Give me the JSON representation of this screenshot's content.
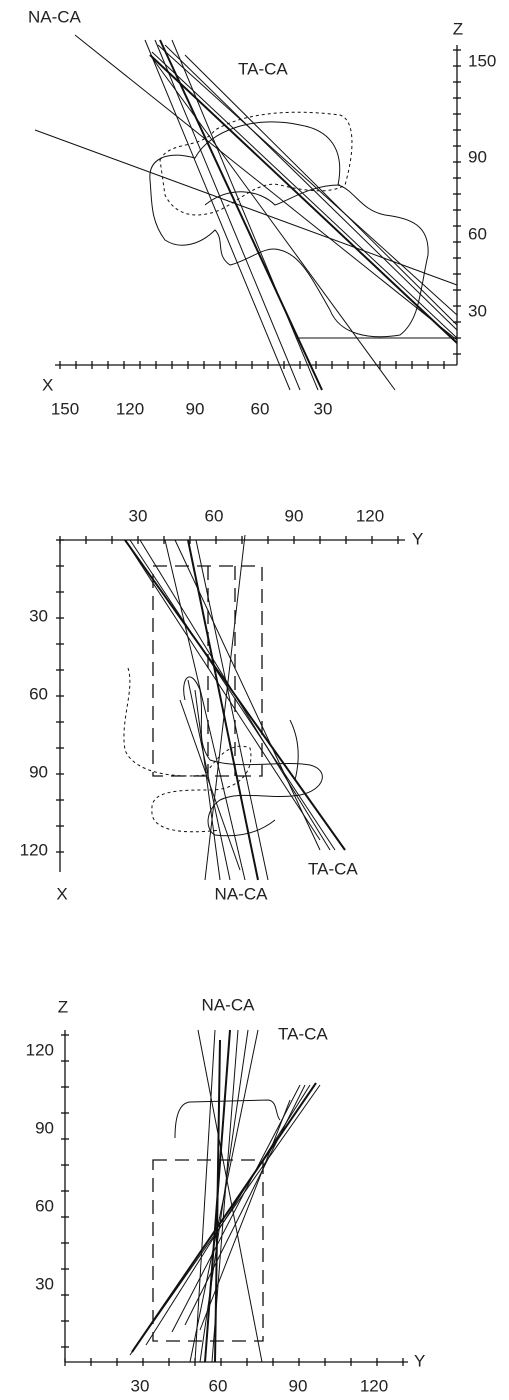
{
  "panels": [
    {
      "axis_labels": [
        "X",
        "Z"
      ],
      "x_ticks": [
        "150",
        "120",
        "90",
        "60",
        "30"
      ],
      "y_ticks": [
        "150",
        "90",
        "60",
        "30"
      ],
      "line_labels": [
        "NA-CA",
        "TA-CA"
      ]
    },
    {
      "axis_labels": [
        "Y",
        "X"
      ],
      "x_ticks": [
        "30",
        "60",
        "90",
        "120"
      ],
      "y_ticks": [
        "30",
        "60",
        "90",
        "120"
      ],
      "line_labels": [
        "NA-CA",
        "TA-CA"
      ]
    },
    {
      "axis_labels": [
        "Z",
        "Y"
      ],
      "x_ticks": [
        "30",
        "60",
        "90",
        "120"
      ],
      "y_ticks": [
        "120",
        "90",
        "60",
        "30"
      ],
      "line_labels": [
        "NA-CA",
        "TA-CA"
      ]
    }
  ]
}
